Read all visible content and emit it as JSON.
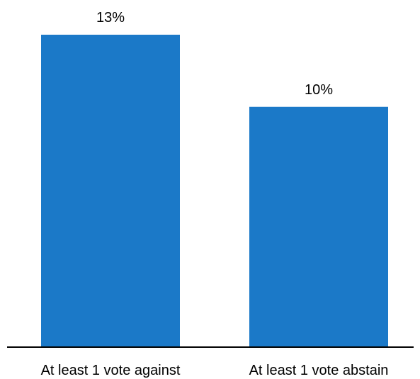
{
  "chart_data": {
    "type": "bar",
    "categories": [
      "At least 1 vote against",
      "At least 1 vote abstain"
    ],
    "values": [
      13,
      10
    ],
    "data_labels": [
      "13%",
      "10%"
    ],
    "ylim": [
      0,
      13
    ],
    "grid": false,
    "legend": "none",
    "colors": {
      "bar": "#1b79c8",
      "axis": "#000000",
      "text": "#000000"
    }
  }
}
